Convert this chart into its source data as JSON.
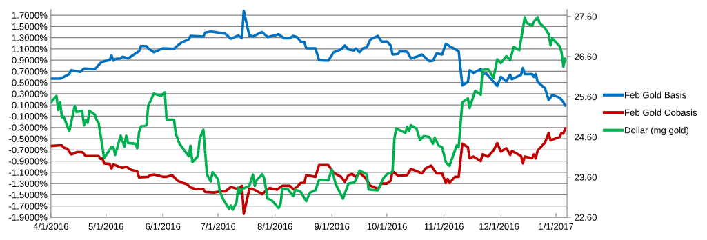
{
  "chart_data": {
    "type": "line",
    "legend": "right",
    "grid": "y",
    "line_style": "solid",
    "marker": "none",
    "xlim": [
      "2016-04-01",
      "2017-01-07"
    ],
    "xticks": [
      {
        "value": "2016-04-01",
        "label": "4/1/2016"
      },
      {
        "value": "2016-05-01",
        "label": "5/1/2016"
      },
      {
        "value": "2016-06-01",
        "label": "6/1/2016"
      },
      {
        "value": "2016-07-01",
        "label": "7/1/2016"
      },
      {
        "value": "2016-08-01",
        "label": "8/1/2016"
      },
      {
        "value": "2016-09-01",
        "label": "9/1/2016"
      },
      {
        "value": "2016-10-01",
        "label": "10/1/2016"
      },
      {
        "value": "2016-11-01",
        "label": "11/1/2016"
      },
      {
        "value": "2016-12-01",
        "label": "12/1/2016"
      },
      {
        "value": "2017-01-01",
        "label": "1/1/2017"
      }
    ],
    "ylim": [
      -1.9,
      1.8
    ],
    "yticks": [
      {
        "value": -1.9,
        "label": "-1.9000%"
      },
      {
        "value": -1.7,
        "label": "-1.7000%"
      },
      {
        "value": -1.5,
        "label": "-1.5000%"
      },
      {
        "value": -1.3,
        "label": "-1.3000%"
      },
      {
        "value": -1.1,
        "label": "-1.1000%"
      },
      {
        "value": -0.9,
        "label": "-0.9000%"
      },
      {
        "value": -0.7,
        "label": "-0.7000%"
      },
      {
        "value": -0.5,
        "label": "-0.5000%"
      },
      {
        "value": -0.3,
        "label": "-0.3000%"
      },
      {
        "value": -0.1,
        "label": "-0.1000%"
      },
      {
        "value": 0.1,
        "label": "0.1000%"
      },
      {
        "value": 0.3,
        "label": "0.3000%"
      },
      {
        "value": 0.5,
        "label": "0.5000%"
      },
      {
        "value": 0.7,
        "label": "0.7000%"
      },
      {
        "value": 0.9,
        "label": "0.9000%"
      },
      {
        "value": 1.1,
        "label": "1.1000%"
      },
      {
        "value": 1.3,
        "label": "1.3000%"
      },
      {
        "value": 1.5,
        "label": "1.5000%"
      },
      {
        "value": 1.7,
        "label": "1.7000%"
      }
    ],
    "y2lim": [
      22.6,
      27.77
    ],
    "y2ticks": [
      {
        "value": 22.6,
        "label": "22.60"
      },
      {
        "value": 23.6,
        "label": "23.60"
      },
      {
        "value": 24.6,
        "label": "24.60"
      },
      {
        "value": 25.6,
        "label": "25.60"
      },
      {
        "value": 26.6,
        "label": "26.60"
      },
      {
        "value": 27.6,
        "label": "27.60"
      }
    ],
    "series": [
      {
        "name": "Feb Gold Basis",
        "color": "#0070c0",
        "x": [
          "2016-04-01",
          "2016-04-06",
          "2016-04-08",
          "2016-04-11",
          "2016-04-12",
          "2016-04-17",
          "2016-04-19",
          "2016-04-25",
          "2016-04-28",
          "2016-04-30",
          "2016-05-03",
          "2016-05-04",
          "2016-05-05",
          "2016-05-06",
          "2016-05-09",
          "2016-05-10",
          "2016-05-13",
          "2016-05-19",
          "2016-05-20",
          "2016-05-23",
          "2016-05-24",
          "2016-05-27",
          "2016-06-01",
          "2016-06-07",
          "2016-06-09",
          "2016-06-11",
          "2016-06-15",
          "2016-06-16",
          "2016-06-23",
          "2016-06-24",
          "2016-06-27",
          "2016-07-05",
          "2016-07-08",
          "2016-07-12",
          "2016-07-14",
          "2016-07-15",
          "2016-07-18",
          "2016-07-20",
          "2016-07-21",
          "2016-07-25",
          "2016-07-28",
          "2016-08-03",
          "2016-08-06",
          "2016-08-09",
          "2016-08-11",
          "2016-08-13",
          "2016-08-15",
          "2016-08-17",
          "2016-08-18",
          "2016-08-23",
          "2016-08-25",
          "2016-08-30",
          "2016-09-02",
          "2016-09-06",
          "2016-09-08",
          "2016-09-10",
          "2016-09-13",
          "2016-09-14",
          "2016-09-16",
          "2016-09-18",
          "2016-09-20",
          "2016-09-22",
          "2016-09-26",
          "2016-09-28",
          "2016-10-01",
          "2016-10-03",
          "2016-10-04",
          "2016-10-07",
          "2016-10-08",
          "2016-10-12",
          "2016-10-14",
          "2016-10-18",
          "2016-10-20",
          "2016-10-24",
          "2016-10-26",
          "2016-10-28",
          "2016-10-31",
          "2016-11-02",
          "2016-11-04",
          "2016-11-09",
          "2016-11-11",
          "2016-11-14",
          "2016-11-15",
          "2016-11-17",
          "2016-11-21",
          "2016-11-22",
          "2016-11-24",
          "2016-11-30",
          "2016-12-02",
          "2016-12-05",
          "2016-12-07",
          "2016-12-08",
          "2016-12-13",
          "2016-12-14",
          "2016-12-15",
          "2016-12-19",
          "2016-12-20",
          "2016-12-21",
          "2016-12-22",
          "2016-12-26",
          "2016-12-28",
          "2016-12-30",
          "2017-01-03",
          "2017-01-05",
          "2017-01-06"
        ],
        "values": [
          0.57,
          0.57,
          0.6,
          0.65,
          0.72,
          0.69,
          0.75,
          0.74,
          0.85,
          0.88,
          0.9,
          0.98,
          0.89,
          0.92,
          0.93,
          0.96,
          0.93,
          1.06,
          1.15,
          1.15,
          1.11,
          1.04,
          1.11,
          1.1,
          1.16,
          1.21,
          1.27,
          1.33,
          1.32,
          1.39,
          1.41,
          1.37,
          1.28,
          1.34,
          1.29,
          1.78,
          1.34,
          1.32,
          1.34,
          1.4,
          1.31,
          1.36,
          1.29,
          1.29,
          1.33,
          1.31,
          1.23,
          1.22,
          1.11,
          1.11,
          0.9,
          0.89,
          1.04,
          1.09,
          1.16,
          1.09,
          1.07,
          1.11,
          1.04,
          1.11,
          1.13,
          1.27,
          1.33,
          1.23,
          1.23,
          1.16,
          1.0,
          1.01,
          1.06,
          1.05,
          0.93,
          0.97,
          1.0,
          0.88,
          0.89,
          1.02,
          1.0,
          1.19,
          1.15,
          1.06,
          0.45,
          0.51,
          0.72,
          0.67,
          0.74,
          0.65,
          0.66,
          0.44,
          0.6,
          0.52,
          0.64,
          0.56,
          0.64,
          0.76,
          0.65,
          0.65,
          0.6,
          0.65,
          0.51,
          0.4,
          0.19,
          0.28,
          0.23,
          0.15,
          0.09
        ]
      },
      {
        "name": "Feb Gold Cobasis",
        "color": "#c00000",
        "x": [
          "2016-04-01",
          "2016-04-05",
          "2016-04-07",
          "2016-04-08",
          "2016-04-10",
          "2016-04-11",
          "2016-04-12",
          "2016-04-14",
          "2016-04-15",
          "2016-04-18",
          "2016-04-20",
          "2016-04-25",
          "2016-04-27",
          "2016-04-28",
          "2016-04-29",
          "2016-04-30",
          "2016-05-03",
          "2016-05-04",
          "2016-05-05",
          "2016-05-09",
          "2016-05-10",
          "2016-05-12",
          "2016-05-15",
          "2016-05-18",
          "2016-05-19",
          "2016-05-24",
          "2016-05-25",
          "2016-05-27",
          "2016-06-01",
          "2016-06-03",
          "2016-06-05",
          "2016-06-06",
          "2016-06-09",
          "2016-06-12",
          "2016-06-14",
          "2016-06-16",
          "2016-06-19",
          "2016-06-23",
          "2016-06-24",
          "2016-06-29",
          "2016-07-02",
          "2016-07-05",
          "2016-07-08",
          "2016-07-10",
          "2016-07-12",
          "2016-07-14",
          "2016-07-15",
          "2016-07-18",
          "2016-07-19",
          "2016-07-22",
          "2016-07-25",
          "2016-07-27",
          "2016-07-29",
          "2016-08-02",
          "2016-08-05",
          "2016-08-09",
          "2016-08-11",
          "2016-08-13",
          "2016-08-15",
          "2016-08-17",
          "2016-08-18",
          "2016-08-23",
          "2016-08-25",
          "2016-08-30",
          "2016-09-02",
          "2016-09-06",
          "2016-09-08",
          "2016-09-10",
          "2016-09-12",
          "2016-09-14",
          "2016-09-16",
          "2016-09-19",
          "2016-09-22",
          "2016-09-24",
          "2016-09-26",
          "2016-09-28",
          "2016-10-01",
          "2016-10-03",
          "2016-10-04",
          "2016-10-07",
          "2016-10-12",
          "2016-10-14",
          "2016-10-18",
          "2016-10-20",
          "2016-10-22",
          "2016-10-25",
          "2016-10-28",
          "2016-10-31",
          "2016-11-02",
          "2016-11-03",
          "2016-11-04",
          "2016-11-07",
          "2016-11-09",
          "2016-11-11",
          "2016-11-14",
          "2016-11-15",
          "2016-11-17",
          "2016-11-21",
          "2016-11-22",
          "2016-11-25",
          "2016-11-28",
          "2016-11-30",
          "2016-12-02",
          "2016-12-05",
          "2016-12-07",
          "2016-12-08",
          "2016-12-13",
          "2016-12-14",
          "2016-12-15",
          "2016-12-19",
          "2016-12-20",
          "2016-12-21",
          "2016-12-22",
          "2016-12-26",
          "2016-12-28",
          "2016-12-29",
          "2017-01-03",
          "2017-01-04",
          "2017-01-05",
          "2017-01-06"
        ],
        "values": [
          -0.63,
          -0.62,
          -0.62,
          -0.66,
          -0.68,
          -0.73,
          -0.78,
          -0.76,
          -0.74,
          -0.74,
          -0.81,
          -0.81,
          -0.81,
          -0.86,
          -0.85,
          -0.94,
          -0.95,
          -1.03,
          -0.96,
          -1.01,
          -1.02,
          -1.0,
          -1.06,
          -1.08,
          -1.19,
          -1.18,
          -1.15,
          -1.14,
          -1.18,
          -1.18,
          -1.16,
          -1.15,
          -1.25,
          -1.29,
          -1.31,
          -1.37,
          -1.4,
          -1.4,
          -1.45,
          -1.46,
          -1.44,
          -1.44,
          -1.36,
          -1.38,
          -1.4,
          -1.34,
          -1.84,
          -1.4,
          -1.39,
          -1.43,
          -1.49,
          -1.43,
          -1.38,
          -1.41,
          -1.34,
          -1.34,
          -1.4,
          -1.36,
          -1.29,
          -1.29,
          -1.15,
          -1.18,
          -0.97,
          -0.97,
          -1.11,
          -1.18,
          -1.27,
          -1.15,
          -1.13,
          -1.18,
          -1.11,
          -1.19,
          -1.34,
          -1.36,
          -1.4,
          -1.3,
          -1.3,
          -1.25,
          -1.08,
          -1.16,
          -1.15,
          -1.04,
          -1.09,
          -1.12,
          -1.03,
          -0.98,
          -1.12,
          -1.12,
          -1.29,
          -1.22,
          -1.29,
          -1.18,
          -1.18,
          -0.59,
          -0.65,
          -0.85,
          -0.82,
          -0.9,
          -0.78,
          -0.82,
          -0.71,
          -0.58,
          -0.73,
          -0.67,
          -0.79,
          -0.72,
          -0.81,
          -0.94,
          -0.82,
          -0.85,
          -0.78,
          -0.85,
          -0.71,
          -0.57,
          -0.4,
          -0.53,
          -0.47,
          -0.4,
          -0.41,
          -0.32
        ]
      },
      {
        "name": "Dollar (mg gold)",
        "color": "#00b050",
        "axis": "y2",
        "x": [
          "2016-04-01",
          "2016-04-04",
          "2016-04-05",
          "2016-04-06",
          "2016-04-07",
          "2016-04-08",
          "2016-04-11",
          "2016-04-14",
          "2016-04-15",
          "2016-04-18",
          "2016-04-19",
          "2016-04-20",
          "2016-04-21",
          "2016-04-22",
          "2016-04-25",
          "2016-04-26",
          "2016-04-27",
          "2016-04-30",
          "2016-05-04",
          "2016-05-05",
          "2016-05-06",
          "2016-05-09",
          "2016-05-11",
          "2016-05-12",
          "2016-05-13",
          "2016-05-17",
          "2016-05-18",
          "2016-05-19",
          "2016-05-20",
          "2016-05-23",
          "2016-05-24",
          "2016-05-27",
          "2016-05-31",
          "2016-06-02",
          "2016-06-03",
          "2016-06-07",
          "2016-06-08",
          "2016-06-10",
          "2016-06-15",
          "2016-06-16",
          "2016-06-17",
          "2016-06-20",
          "2016-06-21",
          "2016-06-23",
          "2016-06-25",
          "2016-06-27",
          "2016-06-28",
          "2016-07-01",
          "2016-07-02",
          "2016-07-04",
          "2016-07-07",
          "2016-07-08",
          "2016-07-09",
          "2016-07-11",
          "2016-07-12",
          "2016-07-13",
          "2016-07-14",
          "2016-07-18",
          "2016-07-20",
          "2016-07-21",
          "2016-07-22",
          "2016-07-25",
          "2016-07-26",
          "2016-07-28",
          "2016-07-30",
          "2016-08-03",
          "2016-08-04",
          "2016-08-05",
          "2016-08-08",
          "2016-08-11",
          "2016-08-12",
          "2016-08-15",
          "2016-08-18",
          "2016-08-20",
          "2016-08-23",
          "2016-08-25",
          "2016-08-30",
          "2016-09-01",
          "2016-09-03",
          "2016-09-07",
          "2016-09-10",
          "2016-09-13",
          "2016-09-14",
          "2016-09-16",
          "2016-09-20",
          "2016-09-21",
          "2016-09-26",
          "2016-09-29",
          "2016-10-01",
          "2016-10-04",
          "2016-10-05",
          "2016-10-06",
          "2016-10-11",
          "2016-10-12",
          "2016-10-13",
          "2016-10-14",
          "2016-10-17",
          "2016-10-19",
          "2016-10-21",
          "2016-10-24",
          "2016-10-26",
          "2016-10-27",
          "2016-10-29",
          "2016-10-31",
          "2016-11-02",
          "2016-11-04",
          "2016-11-08",
          "2016-11-09",
          "2016-11-11",
          "2016-11-14",
          "2016-11-15",
          "2016-11-18",
          "2016-11-21",
          "2016-11-22",
          "2016-11-25",
          "2016-11-28",
          "2016-11-30",
          "2016-12-02",
          "2016-12-05",
          "2016-12-07",
          "2016-12-09",
          "2016-12-12",
          "2016-12-15",
          "2016-12-16",
          "2016-12-19",
          "2016-12-20",
          "2016-12-22",
          "2016-12-23",
          "2016-12-26",
          "2016-12-28",
          "2016-12-29",
          "2016-12-30",
          "2017-01-03",
          "2017-01-04",
          "2017-01-05",
          "2017-01-06"
        ],
        "values": [
          25.46,
          25.62,
          25.27,
          25.46,
          25.09,
          25.1,
          24.74,
          25.37,
          25.22,
          25.25,
          24.89,
          25.02,
          24.95,
          25.25,
          25.15,
          25.01,
          24.95,
          24.07,
          24.35,
          24.35,
          24.15,
          24.63,
          24.36,
          24.63,
          24.45,
          24.43,
          24.32,
          24.72,
          24.86,
          24.89,
          25.37,
          25.68,
          25.62,
          25.71,
          25.03,
          25.03,
          24.68,
          24.43,
          24.12,
          24.38,
          23.97,
          24.12,
          24.55,
          24.78,
          23.66,
          23.49,
          23.72,
          23.55,
          23.23,
          23.03,
          22.81,
          22.89,
          22.79,
          22.96,
          23.34,
          23.19,
          23.3,
          23.38,
          23.66,
          23.38,
          23.52,
          23.67,
          23.59,
          23.06,
          23.03,
          22.83,
          22.92,
          23.3,
          23.3,
          23.12,
          23.29,
          23.23,
          23.0,
          23.21,
          23.27,
          23.53,
          23.52,
          23.79,
          23.43,
          23.06,
          23.44,
          23.46,
          23.52,
          23.76,
          23.67,
          23.29,
          23.27,
          23.57,
          23.67,
          23.73,
          24.55,
          24.81,
          24.7,
          24.85,
          24.74,
          24.89,
          24.81,
          24.52,
          24.62,
          24.6,
          24.43,
          24.58,
          24.39,
          24.34,
          23.97,
          23.88,
          24.39,
          24.34,
          25.46,
          25.56,
          25.32,
          25.75,
          25.65,
          26.27,
          26.29,
          26.07,
          26.53,
          26.44,
          26.61,
          26.51,
          26.84,
          26.76,
          27.58,
          27.44,
          27.37,
          27.47,
          27.58,
          27.44,
          27.31,
          27.16,
          26.88,
          27.05,
          26.86,
          26.71,
          26.35,
          26.55
        ]
      }
    ]
  }
}
